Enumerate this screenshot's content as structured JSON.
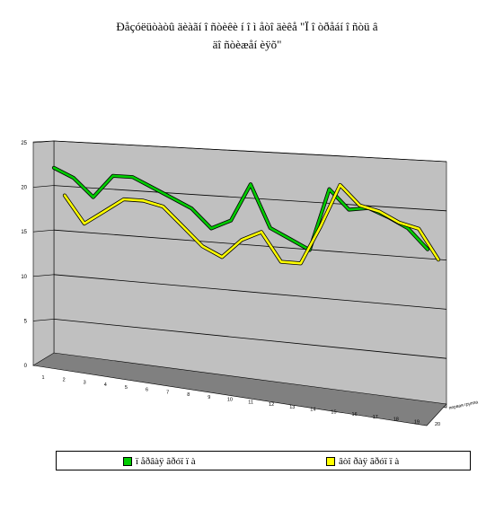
{
  "title": {
    "line1": "Ðåçóëüòàòû  äèàãí î ñòèêè  í î  ì åòî äèêå \"Ï î òðåáí î ñòü â",
    "line2": "äî ñòèæåí èÿõ\""
  },
  "chart_data": {
    "type": "line",
    "style": "3d",
    "title": "Ðåçóëüòàòû  äèàãí î ñòèêè  í î  ì åòî äèêå \"Ï î òðåáí î ñòü â äî ñòèæåí èÿõ\"",
    "x": [
      1,
      2,
      3,
      4,
      5,
      6,
      7,
      8,
      9,
      10,
      11,
      12,
      13,
      14,
      15,
      16,
      17,
      18,
      19,
      20
    ],
    "series_axis_label": "первая группа",
    "ylim": [
      0,
      25
    ],
    "yticks": [
      0,
      5,
      10,
      15,
      20,
      25
    ],
    "grid": true,
    "legend_position": "bottom",
    "series": [
      {
        "name": "ï åðâàÿ ãðóï ï à",
        "color": "#00cc00",
        "values": [
          23,
          22,
          20,
          22.5,
          22.5,
          21.5,
          20.5,
          19.5,
          17.5,
          18.5,
          22.5,
          18,
          17,
          16,
          22.5,
          20.5,
          20.8,
          20,
          19,
          17
        ]
      },
      {
        "name": "âòî ðàÿ ãðóï ï à",
        "color": "#ffff00",
        "values": [
          20.5,
          17.5,
          19,
          20.5,
          20.5,
          20,
          18,
          16,
          15,
          17,
          18,
          15,
          15,
          19,
          23.5,
          21.5,
          21,
          20,
          19.5,
          16.5
        ]
      }
    ]
  },
  "colors": {
    "wall": "#c0c0c0",
    "floor": "#808080",
    "series1": "#00cc00",
    "series2": "#ffff00"
  }
}
